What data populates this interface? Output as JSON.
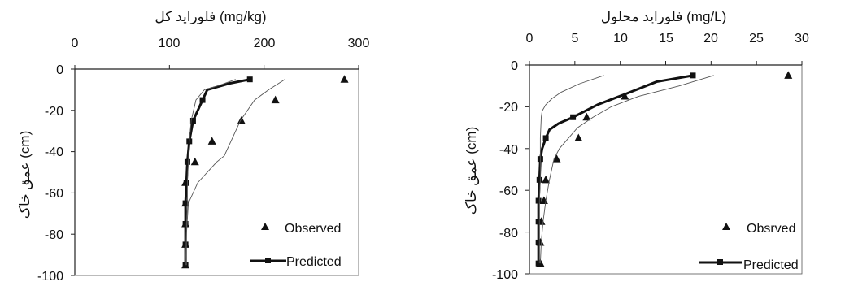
{
  "chart_data": [
    {
      "type": "line",
      "xlabel": "فلوراید کل  (mg/kg)",
      "ylabel": "عمق خاک  (cm)",
      "x_ticks": [
        "0",
        "100",
        "200",
        "300"
      ],
      "y_ticks": [
        "0",
        "-20",
        "-40",
        "-60",
        "-80",
        "-100"
      ],
      "xlim": [
        0,
        300
      ],
      "ylim": [
        -100,
        0
      ],
      "x_axis_position": "top",
      "legend_position": "bottom-right",
      "grid": false,
      "series": [
        {
          "name": "Observed",
          "kind": "scatter",
          "marker": "triangle",
          "x": [
            285,
            212,
            176,
            145,
            127,
            117,
            117,
            117,
            117,
            117
          ],
          "y": [
            -5,
            -15,
            -25,
            -35,
            -45,
            -55,
            -65,
            -75,
            -85,
            -95
          ]
        },
        {
          "name": "Predicted",
          "kind": "line-markers",
          "marker": "square",
          "x": [
            185,
            163,
            140,
            135,
            125,
            121,
            119,
            118,
            117,
            117,
            117,
            117
          ],
          "y": [
            -5,
            -7,
            -10,
            -15,
            -25,
            -35,
            -45,
            -55,
            -65,
            -75,
            -85,
            -95
          ]
        },
        {
          "kind": "bound-lower",
          "x": [
            170,
            152,
            137,
            128,
            123,
            121,
            120,
            119,
            119,
            118,
            118,
            118
          ],
          "y": [
            -5,
            -8,
            -10,
            -15,
            -25,
            -35,
            -45,
            -55,
            -65,
            -75,
            -85,
            -95
          ]
        },
        {
          "kind": "bound-upper",
          "x": [
            222,
            205,
            190,
            175,
            165,
            160,
            158,
            150,
            130,
            120,
            118,
            117
          ],
          "y": [
            -5,
            -10,
            -15,
            -25,
            -35,
            -40,
            -42,
            -45,
            -55,
            -65,
            -80,
            -95
          ]
        }
      ]
    },
    {
      "type": "line",
      "xlabel": "فلوراید محلول  (mg/L)",
      "ylabel": "عمق خاک  (cm)",
      "x_ticks": [
        "0",
        "5",
        "10",
        "15",
        "20",
        "25",
        "30"
      ],
      "y_ticks": [
        "0",
        "-20",
        "-40",
        "-60",
        "-80",
        "-100"
      ],
      "xlim": [
        0,
        30
      ],
      "ylim": [
        -100,
        0
      ],
      "x_axis_position": "top",
      "legend_position": "bottom-right",
      "grid": false,
      "series": [
        {
          "name": "Obsrved",
          "kind": "scatter",
          "marker": "triangle",
          "x": [
            28.5,
            10.5,
            6.3,
            5.4,
            3.0,
            1.8,
            1.6,
            1.3,
            1.2,
            1.2
          ],
          "y": [
            -5,
            -15,
            -25,
            -35,
            -45,
            -55,
            -65,
            -75,
            -85,
            -95
          ]
        },
        {
          "name": "Predicted",
          "kind": "line-markers",
          "marker": "square",
          "x": [
            18.0,
            14.0,
            10.5,
            7.5,
            4.8,
            3.2,
            2.2,
            1.8,
            1.4,
            1.2,
            1.1,
            1.0,
            1.0,
            1.0,
            1.0,
            1.0
          ],
          "y": [
            -5,
            -8,
            -14,
            -19,
            -25,
            -28,
            -31,
            -35,
            -40,
            -45,
            -55,
            -65,
            -75,
            -85,
            -93,
            -95
          ]
        },
        {
          "kind": "bound-lower",
          "x": [
            8.2,
            5.5,
            3.5,
            2.5,
            1.8,
            1.4,
            1.3,
            1.2,
            1.2,
            1.2,
            1.1,
            1.1,
            1.1
          ],
          "y": [
            -5,
            -9,
            -13,
            -16,
            -19,
            -22,
            -25,
            -35,
            -45,
            -55,
            -65,
            -80,
            -95
          ]
        },
        {
          "kind": "bound-upper",
          "x": [
            20.3,
            16.5,
            12.0,
            9.0,
            7.0,
            5.3,
            4.3,
            3.3,
            2.7,
            2.2,
            1.8,
            1.5,
            1.3,
            1.2
          ],
          "y": [
            -5,
            -10,
            -15,
            -20,
            -25,
            -30,
            -35,
            -40,
            -45,
            -55,
            -65,
            -75,
            -85,
            -95
          ]
        }
      ]
    }
  ]
}
